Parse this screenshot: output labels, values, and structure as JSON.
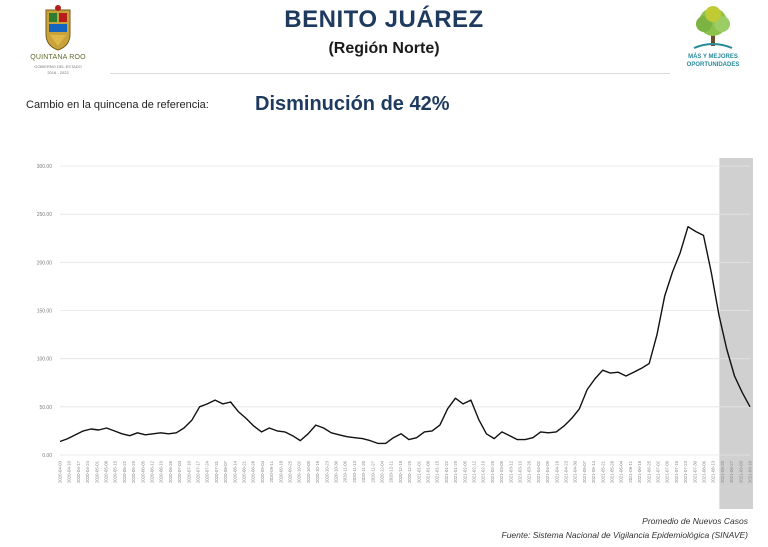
{
  "header": {
    "title": "BENITO JUÁREZ",
    "subtitle": "(Región Norte)",
    "left_logo": {
      "caption": "QUINTANA ROO",
      "tagline": "GOBIERNO DEL ESTADO",
      "years": "2016 - 2022",
      "icon": "state-coat-of-arms-icon"
    },
    "right_logo": {
      "line1": "MÁS Y MEJORES",
      "line2": "OPORTUNIDADES",
      "icon": "tree-logo-icon"
    }
  },
  "summary": {
    "label": "Cambio en la quincena de referencia:",
    "value": "Disminución de 42%"
  },
  "footer": {
    "line1": "Promedio de Nuevos Casos",
    "line2": "Fuente: Sistema Nacional de Vigilancia Epidemiológica (SINAVE)"
  },
  "colors": {
    "title": "#1f3a5f",
    "line": "#111111",
    "grid": "#e4e4e4",
    "highlight": "#c8c8c8"
  },
  "chart_data": {
    "type": "line",
    "ylim": [
      0,
      300
    ],
    "y_ticks": [
      "0.00",
      "50.00",
      "100.00",
      "150.00",
      "200.00",
      "250.00",
      "300.00"
    ],
    "x_tick_labels": [
      "2020-04-03",
      "2020-04-10",
      "2020-04-17",
      "2020-04-24",
      "2020-05-01",
      "2020-05-08",
      "2020-05-15",
      "2020-05-22",
      "2020-05-29",
      "2020-06-05",
      "2020-06-12",
      "2020-06-19",
      "2020-06-26",
      "2020-07-03",
      "2020-07-10",
      "2020-07-17",
      "2020-07-24",
      "2020-07-31",
      "2020-08-07",
      "2020-08-14",
      "2020-08-21",
      "2020-08-28",
      "2020-09-04",
      "2020-09-11",
      "2020-09-18",
      "2020-09-25",
      "2020-10-02",
      "2020-10-09",
      "2020-10-16",
      "2020-10-23",
      "2020-10-30",
      "2020-11-06",
      "2020-11-13",
      "2020-11-20",
      "2020-11-27",
      "2020-12-04",
      "2020-12-11",
      "2020-12-18",
      "2020-12-25",
      "2021-01-01",
      "2021-01-08",
      "2021-01-15",
      "2021-01-22",
      "2021-01-29",
      "2021-02-05",
      "2021-02-12",
      "2021-02-19",
      "2021-02-26",
      "2021-03-05",
      "2021-03-12",
      "2021-03-19",
      "2021-03-26",
      "2021-04-02",
      "2021-04-09",
      "2021-04-16",
      "2021-04-23",
      "2021-04-30",
      "2021-05-07",
      "2021-05-14",
      "2021-05-21",
      "2021-05-28",
      "2021-06-04",
      "2021-06-11",
      "2021-06-18",
      "2021-06-25",
      "2021-07-02",
      "2021-07-09",
      "2021-07-16",
      "2021-07-23",
      "2021-07-30",
      "2021-08-06",
      "2021-08-13",
      "2021-08-20",
      "2021-08-27",
      "2021-09-03",
      "2021-09-10"
    ],
    "highlight_range": [
      "2021-08-20",
      "2021-09-10"
    ],
    "series": [
      {
        "values": [
          14,
          17,
          21,
          25,
          27,
          26,
          28,
          25,
          22,
          20,
          23,
          21,
          22,
          23,
          22,
          23,
          28,
          36,
          50,
          53,
          57,
          53,
          55,
          45,
          38,
          30,
          24,
          28,
          25,
          24,
          20,
          15,
          22,
          31,
          28,
          23,
          21,
          19,
          18,
          17,
          15,
          12,
          12,
          18,
          22,
          16,
          18,
          24,
          25,
          31,
          48,
          59,
          53,
          57,
          37,
          22,
          17,
          24,
          20,
          16,
          16,
          18,
          24,
          23,
          24,
          30,
          38,
          48,
          68,
          79,
          88,
          85,
          86,
          82,
          86,
          90,
          95,
          125,
          165,
          190,
          210,
          237,
          232,
          228,
          190,
          145,
          110,
          82,
          65,
          50
        ]
      }
    ]
  }
}
